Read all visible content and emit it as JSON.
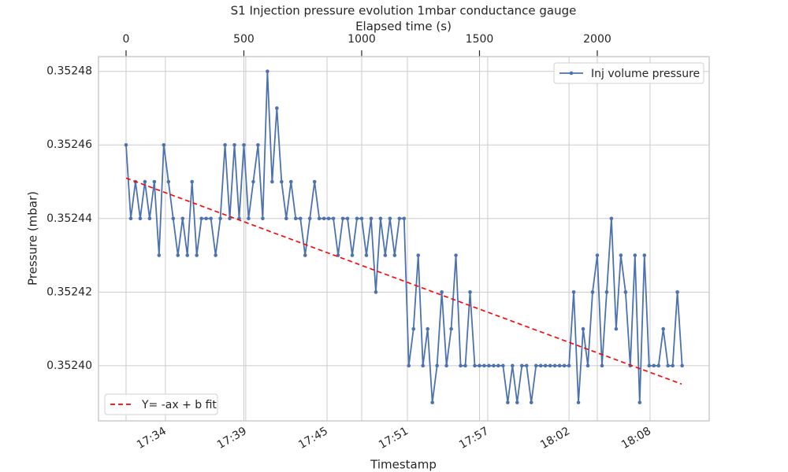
{
  "chart_data": {
    "type": "line",
    "title": "S1 Injection pressure evolution 1mbar conductance gauge",
    "x_label": "Elapsed time (s)",
    "x2_label": "Timestamp",
    "y_label": "Pressure (mbar)",
    "xlim": [
      -117,
      2475
    ],
    "xticks": [
      0,
      500,
      1000,
      1500,
      2000
    ],
    "x2ticks": [
      {
        "value": 167,
        "label": "17:34"
      },
      {
        "value": 508,
        "label": "17:39"
      },
      {
        "value": 853,
        "label": "17:45"
      },
      {
        "value": 1194,
        "label": "17:51"
      },
      {
        "value": 1535,
        "label": "17:57"
      },
      {
        "value": 1880,
        "label": "18:02"
      },
      {
        "value": 2224,
        "label": "18:08"
      }
    ],
    "ylim": [
      0.352385,
      0.352484
    ],
    "yticks": [
      {
        "value": 0.3524,
        "label": "0.35240"
      },
      0.35242,
      0.35244,
      0.35246,
      0.35248
    ],
    "grid": true,
    "series": [
      {
        "name": "Inj volume pressure",
        "color": "#4c72b0",
        "marker": true,
        "dashed": false,
        "legend": "upper right",
        "x": [
          0,
          20,
          40,
          60,
          80,
          100,
          120,
          140,
          160,
          180,
          200,
          220,
          240,
          260,
          280,
          300,
          320,
          340,
          360,
          380,
          400,
          420,
          440,
          460,
          480,
          500,
          520,
          540,
          560,
          580,
          600,
          620,
          640,
          660,
          680,
          700,
          720,
          740,
          760,
          780,
          800,
          820,
          840,
          860,
          880,
          900,
          920,
          940,
          960,
          980,
          1000,
          1020,
          1040,
          1060,
          1080,
          1100,
          1120,
          1140,
          1160,
          1180,
          1200,
          1220,
          1240,
          1260,
          1280,
          1300,
          1320,
          1340,
          1360,
          1380,
          1400,
          1420,
          1440,
          1460,
          1480,
          1500,
          1520,
          1540,
          1560,
          1580,
          1600,
          1620,
          1640,
          1660,
          1680,
          1700,
          1720,
          1740,
          1760,
          1780,
          1800,
          1820,
          1840,
          1860,
          1880,
          1900,
          1920,
          1940,
          1960,
          1980,
          2000,
          2020,
          2040,
          2060,
          2080,
          2100,
          2120,
          2140,
          2160,
          2180,
          2200,
          2220,
          2240,
          2260,
          2280,
          2300,
          2320,
          2340,
          2360
        ],
        "values": [
          0.35246,
          0.35244,
          0.35245,
          0.35244,
          0.35245,
          0.35244,
          0.35245,
          0.35243,
          0.35246,
          0.35245,
          0.35244,
          0.35243,
          0.35244,
          0.35243,
          0.35245,
          0.35243,
          0.35244,
          0.35244,
          0.35244,
          0.35243,
          0.35244,
          0.35246,
          0.35244,
          0.35246,
          0.35244,
          0.35246,
          0.35244,
          0.35245,
          0.35246,
          0.35244,
          0.35248,
          0.35245,
          0.35247,
          0.35245,
          0.35244,
          0.35245,
          0.35244,
          0.35244,
          0.35243,
          0.35244,
          0.35245,
          0.35244,
          0.35244,
          0.35244,
          0.35244,
          0.35243,
          0.35244,
          0.35244,
          0.35243,
          0.35244,
          0.35244,
          0.35243,
          0.35244,
          0.35242,
          0.35244,
          0.35243,
          0.35244,
          0.35243,
          0.35244,
          0.35244,
          0.3524,
          0.35241,
          0.35243,
          0.3524,
          0.35241,
          0.35239,
          0.3524,
          0.35242,
          0.3524,
          0.35241,
          0.35243,
          0.3524,
          0.3524,
          0.35242,
          0.3524,
          0.3524,
          0.3524,
          0.3524,
          0.3524,
          0.3524,
          0.3524,
          0.35239,
          0.3524,
          0.35239,
          0.3524,
          0.3524,
          0.35239,
          0.3524,
          0.3524,
          0.3524,
          0.3524,
          0.3524,
          0.3524,
          0.3524,
          0.3524,
          0.35242,
          0.35239,
          0.35241,
          0.3524,
          0.35242,
          0.35243,
          0.3524,
          0.35242,
          0.35244,
          0.35241,
          0.35243,
          0.35242,
          0.3524,
          0.35243,
          0.35239,
          0.35243,
          0.3524,
          0.3524,
          0.3524,
          0.35241,
          0.3524,
          0.3524,
          0.35242,
          0.3524
        ]
      },
      {
        "name": "Y= -ax + b fit",
        "color": "#ff0000",
        "marker": false,
        "dashed": true,
        "legend": "lower left",
        "x": [
          0,
          2358
        ],
        "values": [
          0.352451,
          0.352395
        ]
      }
    ]
  }
}
